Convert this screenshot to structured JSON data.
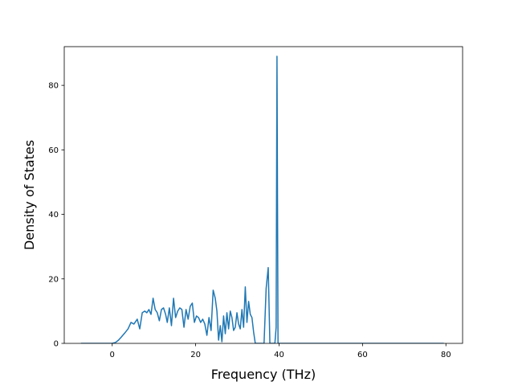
{
  "chart_data": {
    "type": "line",
    "title": "",
    "xlabel": "Frequency (THz)",
    "ylabel": "Density of States",
    "xlim": [
      -11.5,
      84
    ],
    "ylim": [
      0,
      92
    ],
    "xticks": [
      0,
      20,
      40,
      60,
      80
    ],
    "yticks": [
      0,
      20,
      40,
      60,
      80
    ],
    "grid": false,
    "series": [
      {
        "name": "",
        "color": "#1f77b4",
        "x": [
          -7.5,
          -2,
          0,
          0.8,
          1.5,
          2.2,
          3,
          3.8,
          4.5,
          5.2,
          6,
          6.6,
          7.2,
          7.8,
          8.3,
          8.8,
          9.3,
          9.8,
          10.3,
          10.8,
          11.3,
          11.8,
          12.3,
          12.8,
          13.2,
          13.7,
          14.2,
          14.7,
          15.2,
          15.7,
          16.2,
          16.7,
          17.2,
          17.7,
          18.2,
          18.7,
          19.2,
          19.7,
          20.2,
          20.7,
          21.2,
          21.7,
          22.2,
          22.7,
          23.2,
          23.7,
          24.2,
          24.7,
          25.1,
          25.5,
          25.9,
          26.3,
          26.7,
          27.1,
          27.5,
          27.9,
          28.3,
          28.7,
          29.1,
          29.5,
          29.9,
          30.3,
          30.7,
          31.1,
          31.5,
          31.9,
          32.3,
          32.7,
          33.1,
          33.5,
          33.9,
          34.3,
          34.7,
          35.1,
          35.5,
          35.9,
          36.4,
          36.9,
          37.4,
          37.8,
          38.2,
          38.6,
          39.0,
          39.3,
          39.5,
          39.75,
          40.0,
          40.3,
          41,
          50,
          60,
          70,
          79.5
        ],
        "y": [
          0,
          0,
          0,
          0.3,
          1,
          2,
          3.2,
          4.5,
          6.5,
          6,
          7.5,
          4.5,
          9.5,
          10,
          9.5,
          10.5,
          9,
          14,
          10.5,
          9.5,
          7,
          10.5,
          11,
          9,
          6.5,
          11,
          5.5,
          14,
          8,
          10,
          11,
          10.5,
          5,
          10.5,
          7.5,
          11.5,
          12.5,
          6.5,
          8.5,
          8,
          6.5,
          7.5,
          6,
          2.5,
          8,
          4,
          16.5,
          14,
          10,
          1,
          5.5,
          0.5,
          8.5,
          3,
          9.5,
          4.5,
          10,
          8,
          4,
          5,
          9.5,
          6,
          4.5,
          10.5,
          5,
          17.5,
          6.5,
          13,
          9,
          8,
          3.5,
          0,
          0,
          0,
          0,
          0,
          0,
          17,
          23.5,
          0,
          0,
          0,
          0,
          5,
          89,
          0,
          0,
          0,
          0,
          0,
          0,
          0,
          0
        ]
      }
    ]
  }
}
